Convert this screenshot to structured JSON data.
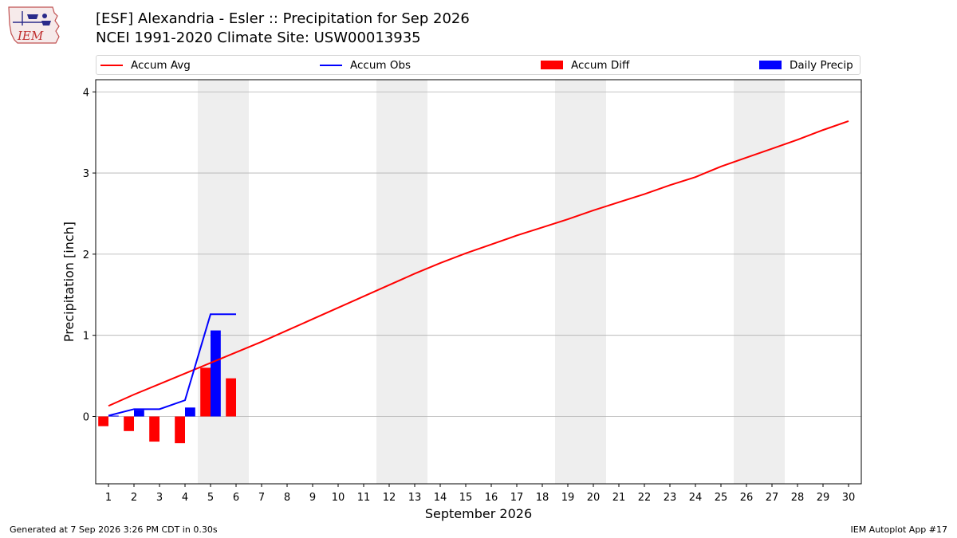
{
  "header": {
    "logo_text": "IEM",
    "title_line1": "[ESF] Alexandria - Esler :: Precipitation for Sep 2026",
    "title_line2": "NCEI 1991-2020 Climate Site: USW00013935"
  },
  "colors": {
    "accum_avg": "#ff0000",
    "accum_obs": "#0000ff",
    "accum_diff": "#ff0000",
    "daily_precip": "#0000ff",
    "weekend_band": "#eeeeee",
    "grid": "#b0b0b0"
  },
  "legend": [
    {
      "label": "Accum Avg",
      "kind": "line",
      "color": "#ff0000"
    },
    {
      "label": "Accum Obs",
      "kind": "line",
      "color": "#0000ff"
    },
    {
      "label": "Accum Diff",
      "kind": "bar",
      "color": "#ff0000"
    },
    {
      "label": "Daily Precip",
      "kind": "bar",
      "color": "#0000ff"
    }
  ],
  "chart_data": {
    "type": "line",
    "xlabel": "September 2026",
    "ylabel": "Precipitation [inch]",
    "xlim": [
      0.5,
      30.5
    ],
    "ylim": [
      -0.83,
      4.15
    ],
    "yticks": [
      0,
      1,
      2,
      3,
      4
    ],
    "xticks": [
      1,
      2,
      3,
      4,
      5,
      6,
      7,
      8,
      9,
      10,
      11,
      12,
      13,
      14,
      15,
      16,
      17,
      18,
      19,
      20,
      21,
      22,
      23,
      24,
      25,
      26,
      27,
      28,
      29,
      30
    ],
    "grid": "horizontal",
    "legend_position": "top",
    "weekend_bands": [
      [
        5,
        6
      ],
      [
        12,
        13
      ],
      [
        19,
        20
      ],
      [
        26,
        27
      ]
    ],
    "series": [
      {
        "name": "Accum Avg",
        "type": "line",
        "x": [
          1,
          2,
          3,
          4,
          5,
          6,
          7,
          8,
          9,
          10,
          11,
          12,
          13,
          14,
          15,
          16,
          17,
          18,
          19,
          20,
          21,
          22,
          23,
          24,
          25,
          26,
          27,
          28,
          29,
          30
        ],
        "values": [
          0.13,
          0.27,
          0.4,
          0.53,
          0.66,
          0.79,
          0.92,
          1.06,
          1.2,
          1.34,
          1.48,
          1.62,
          1.76,
          1.89,
          2.01,
          2.12,
          2.23,
          2.33,
          2.43,
          2.54,
          2.64,
          2.74,
          2.85,
          2.95,
          3.08,
          3.19,
          3.3,
          3.41,
          3.53,
          3.64
        ]
      },
      {
        "name": "Accum Obs",
        "type": "line",
        "x": [
          1,
          2,
          3,
          4,
          5,
          6
        ],
        "values": [
          0.01,
          0.09,
          0.09,
          0.2,
          1.26,
          1.26
        ]
      },
      {
        "name": "Accum Diff",
        "type": "bar",
        "x": [
          1,
          2,
          3,
          4,
          5,
          6
        ],
        "values": [
          -0.12,
          -0.18,
          -0.31,
          -0.33,
          0.6,
          0.47
        ]
      },
      {
        "name": "Daily Precip",
        "type": "bar",
        "x": [
          1,
          2,
          3,
          4,
          5,
          6
        ],
        "values": [
          0.01,
          0.08,
          0.0,
          0.11,
          1.06,
          0.0
        ]
      }
    ]
  },
  "footer": {
    "generated": "Generated at 7 Sep 2026 3:26 PM CDT in 0.30s",
    "app": "IEM Autoplot App #17"
  }
}
